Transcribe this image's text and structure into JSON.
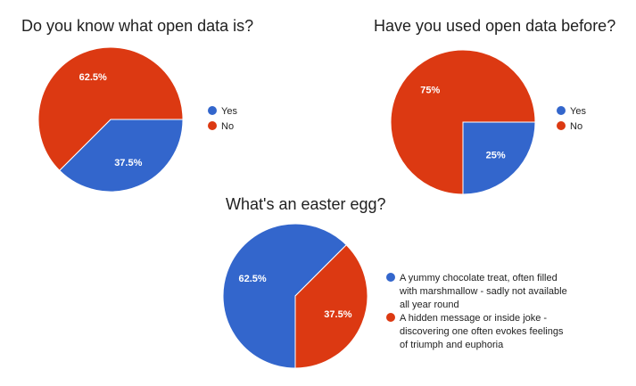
{
  "chart_data": [
    {
      "type": "pie",
      "title": "Do you know what open data is?",
      "slices": [
        {
          "label": "Yes",
          "value": 37.5,
          "display": "37.5%",
          "color": "#3366cc"
        },
        {
          "label": "No",
          "value": 62.5,
          "display": "62.5%",
          "color": "#dc3912"
        }
      ],
      "legend_position": "right"
    },
    {
      "type": "pie",
      "title": "Have you used open data before?",
      "slices": [
        {
          "label": "Yes",
          "value": 25,
          "display": "25%",
          "color": "#3366cc"
        },
        {
          "label": "No",
          "value": 75,
          "display": "75%",
          "color": "#dc3912"
        }
      ],
      "legend_position": "right"
    },
    {
      "type": "pie",
      "title": "What's an easter egg?",
      "slices": [
        {
          "label": "A yummy chocolate treat, often filled with marshmallow - sadly not available all year round",
          "value": 62.5,
          "display": "62.5%",
          "color": "#3366cc"
        },
        {
          "label": "A hidden message or inside joke - discovering one often evokes feelings of triumph and euphoria",
          "value": 37.5,
          "display": "37.5%",
          "color": "#dc3912"
        }
      ],
      "legend_position": "right"
    }
  ]
}
